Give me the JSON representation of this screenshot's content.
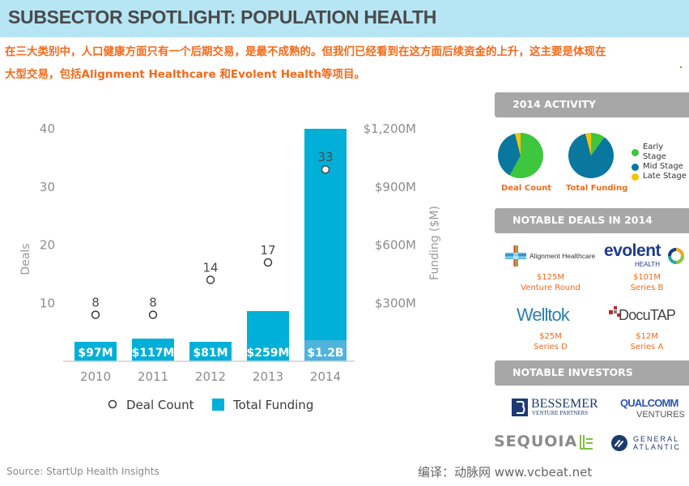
{
  "header": {
    "title": "SUBSECTOR SPOTLIGHT: POPULATION HEALTH"
  },
  "intro": {
    "line1": "在三大类别中，人口健康方面只有一个后期交易，是最不成熟的。但我们已经看到在这方面后续资金的上升，这主要是体现在",
    "line2": "大型交易，包括Alignment Healthcare 和Evolent Health等项目。"
  },
  "colors": {
    "bar": "#00b0d8",
    "bar_highlight": "#4fb3dc",
    "early": "#3ec63e",
    "mid": "#0a779e",
    "late": "#f5c400",
    "orange": "#f26a1b",
    "header_bg": "#b6e5f4",
    "section_bar": "#a7a7a7"
  },
  "chart_data": [
    {
      "type": "bar",
      "title": "",
      "categories": [
        "2010",
        "2011",
        "2012",
        "2013",
        "2014"
      ],
      "series": [
        {
          "name": "Total Funding",
          "kind": "bar",
          "axis": "right",
          "values": [
            97,
            117,
            81,
            259,
            1200
          ],
          "labels": [
            "$97M",
            "$117M",
            "$81M",
            "$259M",
            "$1.2B"
          ]
        },
        {
          "name": "Deal Count",
          "kind": "scatter",
          "axis": "left",
          "values": [
            8,
            8,
            14,
            17,
            33
          ],
          "labels": [
            "8",
            "8",
            "14",
            "17",
            "33"
          ]
        }
      ],
      "ylabel": "Deals",
      "y2label": "Funding ($M)",
      "ylim": [
        0,
        40
      ],
      "yticks": [
        "10",
        "20",
        "30",
        "40"
      ],
      "y2lim": [
        0,
        1200
      ],
      "y2ticks": [
        "$300M",
        "$600M",
        "$900M",
        "$1,200M"
      ],
      "legend": {
        "placement": "bottom",
        "items": [
          "Deal Count",
          "Total Funding"
        ]
      },
      "grid": false
    },
    {
      "type": "pie",
      "title": "Deal Count",
      "categories": [
        "Early Stage",
        "Mid Stage",
        "Late Stage"
      ],
      "values": [
        58,
        38,
        4
      ]
    },
    {
      "type": "pie",
      "title": "Total Funding",
      "categories": [
        "Early Stage",
        "Mid Stage",
        "Late Stage"
      ],
      "values": [
        10,
        86,
        4
      ]
    }
  ],
  "sidebar": {
    "activity_title": "2014 ACTIVITY",
    "pie_labels": [
      "Deal Count",
      "Total Funding"
    ],
    "legend": [
      "Early Stage",
      "Mid Stage",
      "Late Stage"
    ],
    "deals_title": "NOTABLE DEALS IN 2014",
    "deals": [
      {
        "company": "Alignment Healthcare",
        "amount": "$125M",
        "round": "Venture Round"
      },
      {
        "company": "evolent",
        "sub": "HEALTH",
        "amount": "$101M",
        "round": "Series B"
      },
      {
        "company": "Welltok",
        "amount": "$25M",
        "round": "Series D"
      },
      {
        "company": "DocuTAP",
        "amount": "$12M",
        "round": "Series A"
      }
    ],
    "investors_title": "NOTABLE INVESTORS",
    "investors": [
      {
        "name": "BESSEMER",
        "sub": "VENTURE PARTNERS"
      },
      {
        "name": "QUALCOMM",
        "sub": "VENTURES"
      },
      {
        "name": "SEQUOIA"
      },
      {
        "name": "GENERAL",
        "sub": "ATLANTIC"
      }
    ]
  },
  "footer": {
    "source": "Source: StartUp Health Insights",
    "credit": "编译：动脉网 www.vcbeat.net"
  }
}
